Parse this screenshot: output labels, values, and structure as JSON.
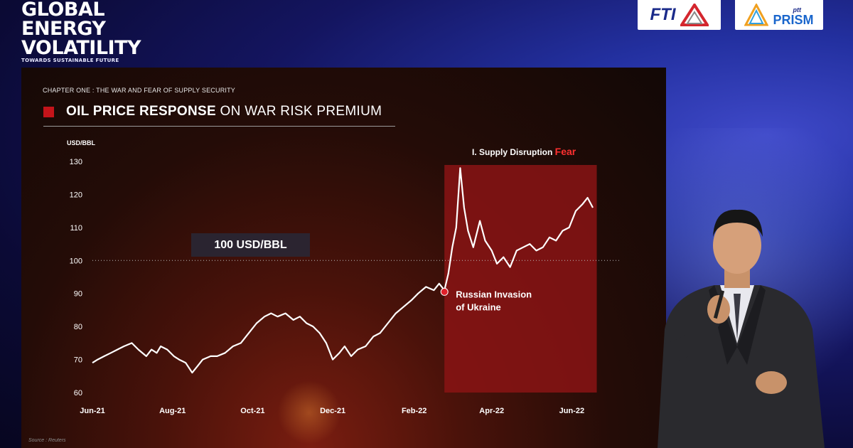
{
  "event": {
    "logo_lines": [
      "GLOBAL",
      "ENERGY",
      "VOLATILITY"
    ],
    "tagline": "TOWARDS SUSTAINABLE FUTURE",
    "sponsors": [
      "FTI",
      "ptt",
      "PRISM"
    ]
  },
  "slide": {
    "chapter": "CHAPTER ONE : THE WAR AND FEAR OF SUPPLY SECURITY",
    "title_bold": "OIL PRICE RESPONSE",
    "title_light": " ON WAR RISK PREMIUM",
    "source": "Source : Reuters"
  },
  "chart_data": {
    "type": "line",
    "ylabel": "USD/BBL",
    "ylim": [
      60,
      130
    ],
    "yticks": [
      60,
      70,
      80,
      90,
      100,
      110,
      120,
      130
    ],
    "x_tick_labels": [
      "Jun-21",
      "Aug-21",
      "Oct-21",
      "Dec-21",
      "Feb-22",
      "Apr-22",
      "Jun-22"
    ],
    "x_tick_dates": [
      "2021-06-01",
      "2021-08-01",
      "2021-10-01",
      "2021-12-01",
      "2022-02-01",
      "2022-04-01",
      "2022-06-01"
    ],
    "xlim": [
      "2021-06-01",
      "2022-06-30"
    ],
    "reference_line": {
      "value": 100,
      "label": "100 USD/BBL"
    },
    "highlight": {
      "x_start": "2022-02-24",
      "x_end": "2022-06-20",
      "label": "I. Supply Disruption ",
      "label_emphasis": "Fear",
      "color": "#8a1414"
    },
    "event_marker": {
      "x": "2022-02-24",
      "y": 90.5,
      "label_line1": "Russian Invasion",
      "label_line2": "of Ukraine"
    },
    "series": [
      {
        "x": [
          "2021-06-01",
          "2021-06-05",
          "2021-06-10",
          "2021-06-15",
          "2021-06-20",
          "2021-06-25",
          "2021-07-01",
          "2021-07-06",
          "2021-07-12",
          "2021-07-16",
          "2021-07-20",
          "2021-07-23",
          "2021-07-28",
          "2021-08-02",
          "2021-08-06",
          "2021-08-11",
          "2021-08-16",
          "2021-08-20",
          "2021-08-24",
          "2021-08-30",
          "2021-09-04",
          "2021-09-10",
          "2021-09-16",
          "2021-09-22",
          "2021-09-28",
          "2021-10-04",
          "2021-10-10",
          "2021-10-15",
          "2021-10-20",
          "2021-10-26",
          "2021-11-01",
          "2021-11-06",
          "2021-11-11",
          "2021-11-16",
          "2021-11-21",
          "2021-11-26",
          "2021-12-01",
          "2021-12-06",
          "2021-12-10",
          "2021-12-15",
          "2021-12-20",
          "2021-12-26",
          "2022-01-01",
          "2022-01-06",
          "2022-01-12",
          "2022-01-18",
          "2022-01-24",
          "2022-01-30",
          "2022-02-04",
          "2022-02-10",
          "2022-02-16",
          "2022-02-20",
          "2022-02-24",
          "2022-02-27",
          "2022-03-02",
          "2022-03-05",
          "2022-03-08",
          "2022-03-11",
          "2022-03-14",
          "2022-03-18",
          "2022-03-23",
          "2022-03-27",
          "2022-04-01",
          "2022-04-05",
          "2022-04-10",
          "2022-04-15",
          "2022-04-20",
          "2022-04-25",
          "2022-04-30",
          "2022-05-05",
          "2022-05-10",
          "2022-05-15",
          "2022-05-20",
          "2022-05-25",
          "2022-05-30",
          "2022-06-04",
          "2022-06-09",
          "2022-06-13",
          "2022-06-17"
        ],
        "y": [
          69,
          70,
          71,
          72,
          73,
          74,
          75,
          73,
          71,
          73,
          72,
          74,
          73,
          71,
          70,
          69,
          66,
          68,
          70,
          71,
          71,
          72,
          74,
          75,
          78,
          81,
          83,
          84,
          83,
          84,
          82,
          83,
          81,
          80,
          78,
          75,
          70,
          72,
          74,
          71,
          73,
          74,
          77,
          78,
          81,
          84,
          86,
          88,
          90,
          92,
          91,
          93,
          91,
          96,
          104,
          110,
          128,
          116,
          109,
          104,
          112,
          106,
          103,
          99,
          101,
          98,
          103,
          104,
          105,
          103,
          104,
          107,
          106,
          109,
          110,
          115,
          117,
          119,
          116
        ]
      }
    ]
  }
}
